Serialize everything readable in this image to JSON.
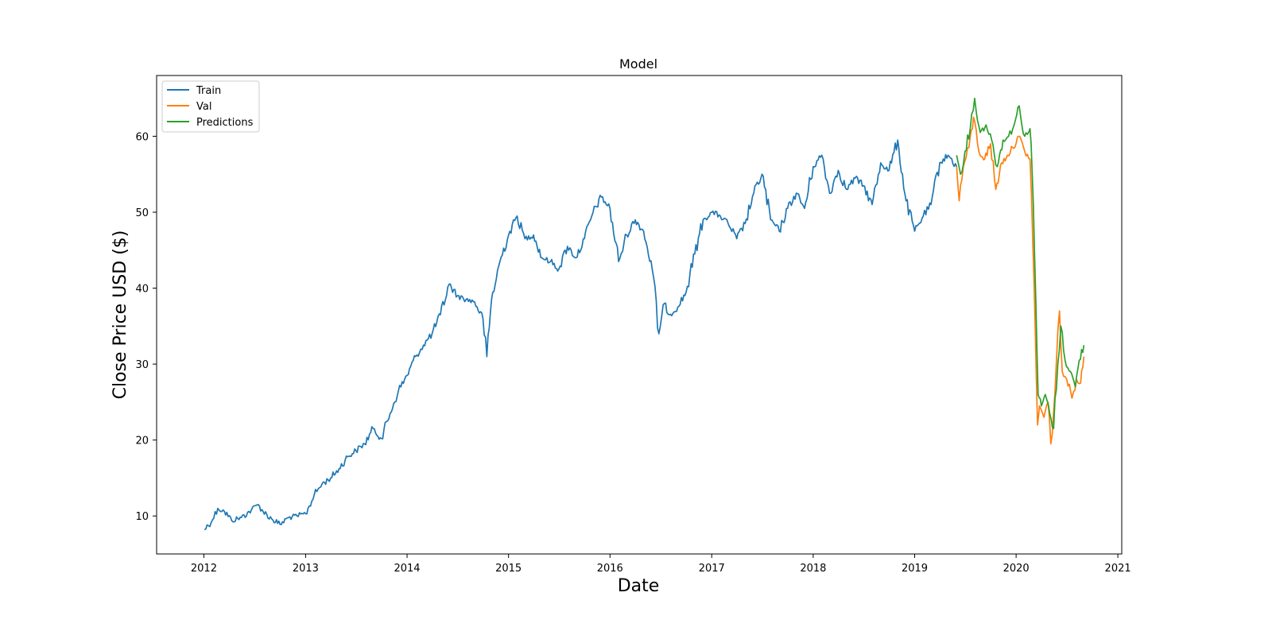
{
  "chart_data": {
    "type": "line",
    "title": "Model",
    "xlabel": "Date",
    "ylabel": "Close Price USD ($)",
    "x_axis_type": "date",
    "xlim": [
      "2011-07-15",
      "2021-01-15"
    ],
    "ylim": [
      5,
      68
    ],
    "xticks": [
      "2012",
      "2013",
      "2014",
      "2015",
      "2016",
      "2017",
      "2018",
      "2019",
      "2020",
      "2021"
    ],
    "xtick_dates": [
      "2012-01-01",
      "2013-01-01",
      "2014-01-01",
      "2015-01-01",
      "2016-01-01",
      "2017-01-01",
      "2018-01-01",
      "2019-01-01",
      "2020-01-01",
      "2021-01-01"
    ],
    "yticks": [
      10,
      20,
      30,
      40,
      50,
      60
    ],
    "grid": false,
    "legend_position": "upper-left",
    "series": [
      {
        "name": "Train",
        "color": "#1f77b4",
        "points": [
          [
            "2012-01-03",
            8.2
          ],
          [
            "2012-02-01",
            9.5
          ],
          [
            "2012-02-20",
            11.0
          ],
          [
            "2012-03-15",
            10.6
          ],
          [
            "2012-04-10",
            9.4
          ],
          [
            "2012-05-15",
            9.8
          ],
          [
            "2012-06-20",
            10.8
          ],
          [
            "2012-07-15",
            11.5
          ],
          [
            "2012-08-01",
            10.6
          ],
          [
            "2012-09-01",
            9.6
          ],
          [
            "2012-10-01",
            8.9
          ],
          [
            "2012-11-01",
            9.8
          ],
          [
            "2012-12-01",
            10.0
          ],
          [
            "2013-01-01",
            10.3
          ],
          [
            "2013-02-01",
            12.8
          ],
          [
            "2013-03-01",
            14.2
          ],
          [
            "2013-04-01",
            15.0
          ],
          [
            "2013-05-01",
            16.2
          ],
          [
            "2013-06-01",
            17.8
          ],
          [
            "2013-07-01",
            18.6
          ],
          [
            "2013-08-01",
            19.5
          ],
          [
            "2013-09-01",
            21.5
          ],
          [
            "2013-10-01",
            20.2
          ],
          [
            "2013-11-01",
            23.5
          ],
          [
            "2013-12-01",
            26.5
          ],
          [
            "2014-01-01",
            28.5
          ],
          [
            "2014-02-01",
            31.0
          ],
          [
            "2014-03-01",
            32.5
          ],
          [
            "2014-04-01",
            34.0
          ],
          [
            "2014-05-01",
            36.5
          ],
          [
            "2014-06-01",
            40.5
          ],
          [
            "2014-07-01",
            39.0
          ],
          [
            "2014-08-01",
            38.5
          ],
          [
            "2014-09-01",
            38.2
          ],
          [
            "2014-10-01",
            36.0
          ],
          [
            "2014-10-15",
            31.0
          ],
          [
            "2014-11-01",
            38.5
          ],
          [
            "2014-12-01",
            43.5
          ],
          [
            "2015-01-01",
            47.0
          ],
          [
            "2015-02-01",
            49.5
          ],
          [
            "2015-03-01",
            46.5
          ],
          [
            "2015-04-01",
            47.0
          ],
          [
            "2015-05-01",
            44.0
          ],
          [
            "2015-06-01",
            43.5
          ],
          [
            "2015-07-01",
            42.5
          ],
          [
            "2015-08-01",
            45.5
          ],
          [
            "2015-09-01",
            44.0
          ],
          [
            "2015-10-01",
            46.5
          ],
          [
            "2015-11-01",
            50.0
          ],
          [
            "2015-12-01",
            52.0
          ],
          [
            "2016-01-01",
            50.5
          ],
          [
            "2016-02-01",
            43.5
          ],
          [
            "2016-03-01",
            47.0
          ],
          [
            "2016-04-01",
            49.0
          ],
          [
            "2016-05-01",
            47.5
          ],
          [
            "2016-06-01",
            42.5
          ],
          [
            "2016-06-25",
            34.0
          ],
          [
            "2016-07-15",
            38.0
          ],
          [
            "2016-08-01",
            36.5
          ],
          [
            "2016-09-01",
            37.5
          ],
          [
            "2016-10-01",
            39.5
          ],
          [
            "2016-11-01",
            44.5
          ],
          [
            "2016-12-01",
            49.0
          ],
          [
            "2017-01-01",
            50.0
          ],
          [
            "2017-02-01",
            49.5
          ],
          [
            "2017-03-01",
            48.5
          ],
          [
            "2017-04-01",
            46.5
          ],
          [
            "2017-05-01",
            48.5
          ],
          [
            "2017-06-01",
            52.5
          ],
          [
            "2017-07-01",
            55.0
          ],
          [
            "2017-08-01",
            49.0
          ],
          [
            "2017-09-01",
            47.5
          ],
          [
            "2017-10-01",
            50.5
          ],
          [
            "2017-11-01",
            52.5
          ],
          [
            "2017-12-01",
            50.5
          ],
          [
            "2018-01-01",
            56.0
          ],
          [
            "2018-02-01",
            57.5
          ],
          [
            "2018-03-01",
            52.5
          ],
          [
            "2018-04-01",
            55.5
          ],
          [
            "2018-05-01",
            53.0
          ],
          [
            "2018-06-01",
            54.5
          ],
          [
            "2018-07-01",
            53.5
          ],
          [
            "2018-08-01",
            51.0
          ],
          [
            "2018-09-01",
            56.5
          ],
          [
            "2018-10-01",
            55.5
          ],
          [
            "2018-11-01",
            59.5
          ],
          [
            "2018-12-01",
            51.5
          ],
          [
            "2019-01-01",
            47.5
          ],
          [
            "2019-02-01",
            49.5
          ],
          [
            "2019-03-01",
            51.0
          ],
          [
            "2019-04-01",
            56.5
          ],
          [
            "2019-05-01",
            57.5
          ],
          [
            "2019-06-01",
            56.0
          ]
        ]
      },
      {
        "name": "Val",
        "color": "#ff7f0e",
        "points": [
          [
            "2019-06-01",
            56.0
          ],
          [
            "2019-06-10",
            51.5
          ],
          [
            "2019-06-25",
            56.0
          ],
          [
            "2019-07-15",
            58.5
          ],
          [
            "2019-08-01",
            62.5
          ],
          [
            "2019-08-20",
            58.0
          ],
          [
            "2019-09-10",
            57.0
          ],
          [
            "2019-10-01",
            59.0
          ],
          [
            "2019-10-20",
            53.0
          ],
          [
            "2019-11-10",
            56.5
          ],
          [
            "2019-12-01",
            57.5
          ],
          [
            "2019-12-20",
            58.5
          ],
          [
            "2020-01-10",
            60.0
          ],
          [
            "2020-02-01",
            58.0
          ],
          [
            "2020-02-20",
            57.0
          ],
          [
            "2020-03-01",
            46.0
          ],
          [
            "2020-03-10",
            34.0
          ],
          [
            "2020-03-18",
            22.0
          ],
          [
            "2020-03-25",
            24.5
          ],
          [
            "2020-04-10",
            23.0
          ],
          [
            "2020-04-25",
            25.0
          ],
          [
            "2020-05-05",
            19.5
          ],
          [
            "2020-05-20",
            26.5
          ],
          [
            "2020-06-05",
            37.0
          ],
          [
            "2020-06-15",
            29.0
          ],
          [
            "2020-07-01",
            28.0
          ],
          [
            "2020-07-20",
            25.5
          ],
          [
            "2020-08-05",
            28.0
          ],
          [
            "2020-08-20",
            27.5
          ],
          [
            "2020-09-01",
            31.0
          ]
        ]
      },
      {
        "name": "Predictions",
        "color": "#2ca02c",
        "points": [
          [
            "2019-06-01",
            57.5
          ],
          [
            "2019-06-15",
            55.0
          ],
          [
            "2019-07-01",
            58.0
          ],
          [
            "2019-07-20",
            61.0
          ],
          [
            "2019-08-05",
            65.0
          ],
          [
            "2019-08-25",
            60.5
          ],
          [
            "2019-09-15",
            61.5
          ],
          [
            "2019-10-05",
            59.5
          ],
          [
            "2019-10-25",
            56.0
          ],
          [
            "2019-11-15",
            59.5
          ],
          [
            "2019-12-05",
            60.0
          ],
          [
            "2019-12-25",
            61.5
          ],
          [
            "2020-01-12",
            64.0
          ],
          [
            "2020-02-01",
            60.0
          ],
          [
            "2020-02-20",
            61.0
          ],
          [
            "2020-03-03",
            51.0
          ],
          [
            "2020-03-12",
            38.0
          ],
          [
            "2020-03-20",
            26.0
          ],
          [
            "2020-04-01",
            24.5
          ],
          [
            "2020-04-15",
            26.0
          ],
          [
            "2020-05-01",
            23.5
          ],
          [
            "2020-05-15",
            21.5
          ],
          [
            "2020-05-30",
            30.0
          ],
          [
            "2020-06-10",
            35.0
          ],
          [
            "2020-06-25",
            30.5
          ],
          [
            "2020-07-15",
            29.0
          ],
          [
            "2020-08-01",
            27.0
          ],
          [
            "2020-08-15",
            30.5
          ],
          [
            "2020-09-01",
            32.5
          ]
        ]
      }
    ]
  }
}
